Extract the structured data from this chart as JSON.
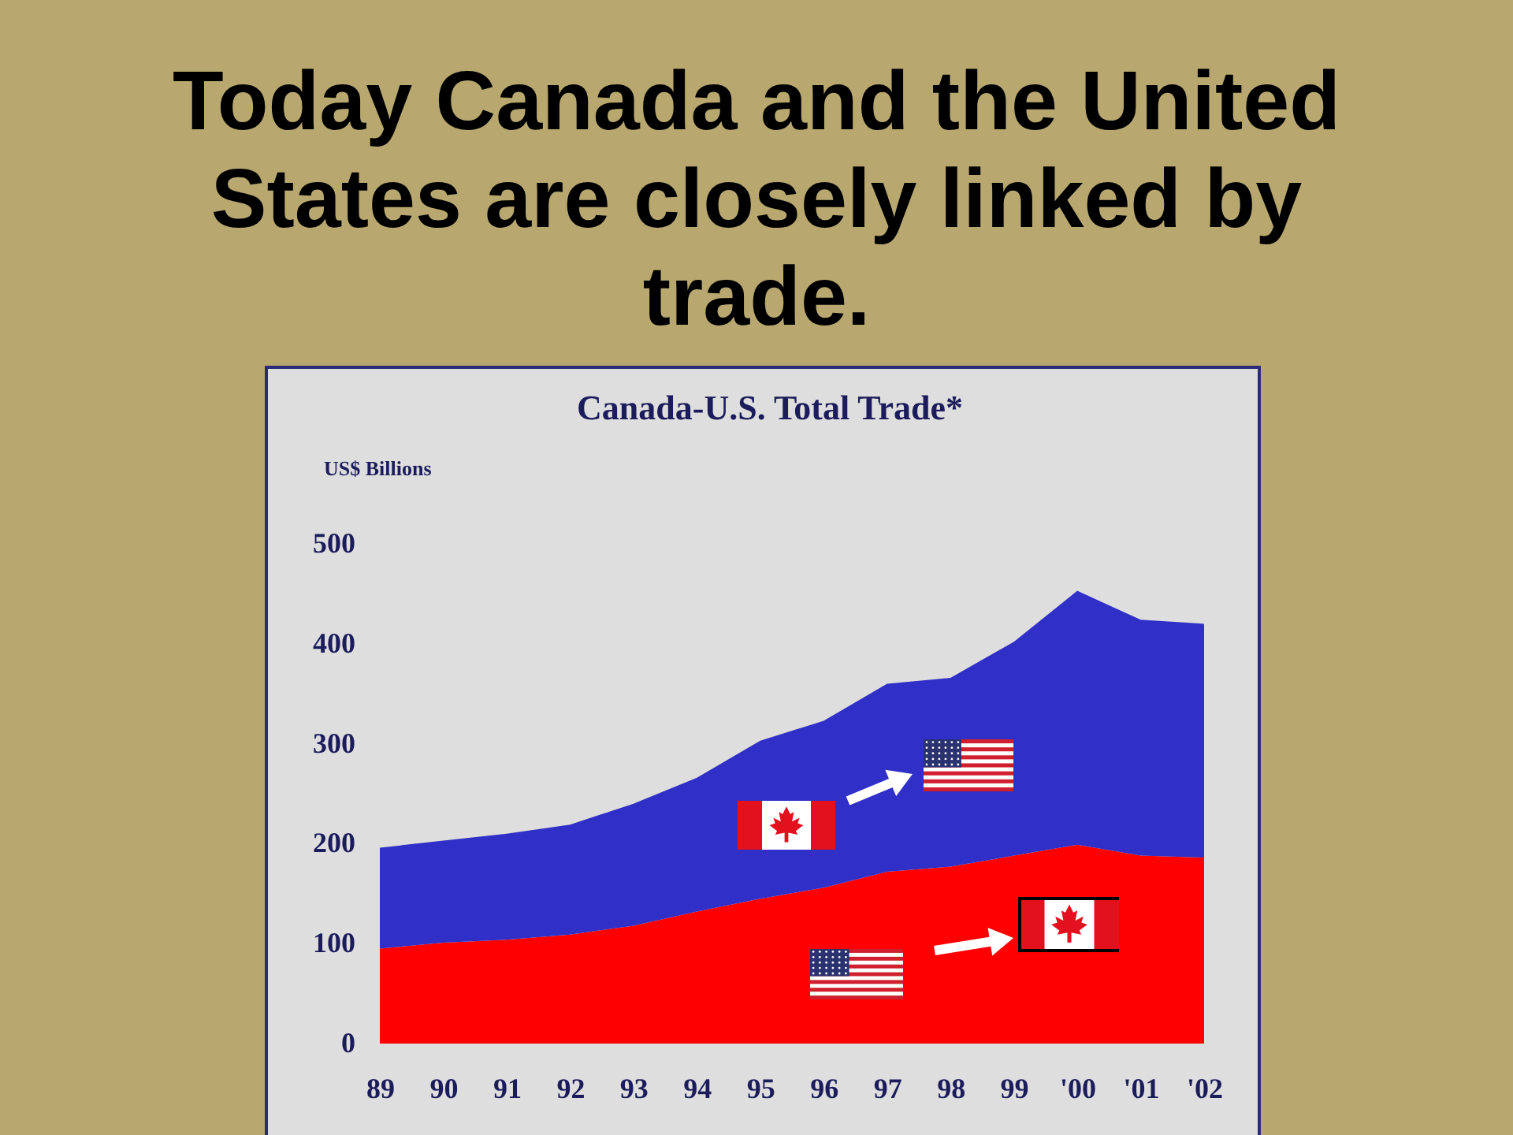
{
  "chart_data": {
    "type": "area",
    "title": "Today Canada and the United States are closely linked by trade.",
    "subtitle": "Canada-U.S. Total Trade*",
    "ylabel": "US$ Billions",
    "categories": [
      "89",
      "90",
      "91",
      "92",
      "93",
      "94",
      "95",
      "96",
      "97",
      "98",
      "99",
      "'00",
      "'01",
      "'02"
    ],
    "stacked": true,
    "series": [
      {
        "color": "#ff0000",
        "values": [
          95,
          101,
          104,
          109,
          118,
          132,
          145,
          156,
          172,
          177,
          188,
          199,
          188,
          186
        ]
      },
      {
        "color": "#3030c8",
        "values": [
          101,
          102,
          106,
          110,
          122,
          134,
          158,
          167,
          188,
          189,
          214,
          254,
          236,
          234
        ]
      }
    ],
    "ylim": [
      0,
      500
    ],
    "yticks": [
      0,
      100,
      200,
      300,
      400,
      500
    ]
  }
}
